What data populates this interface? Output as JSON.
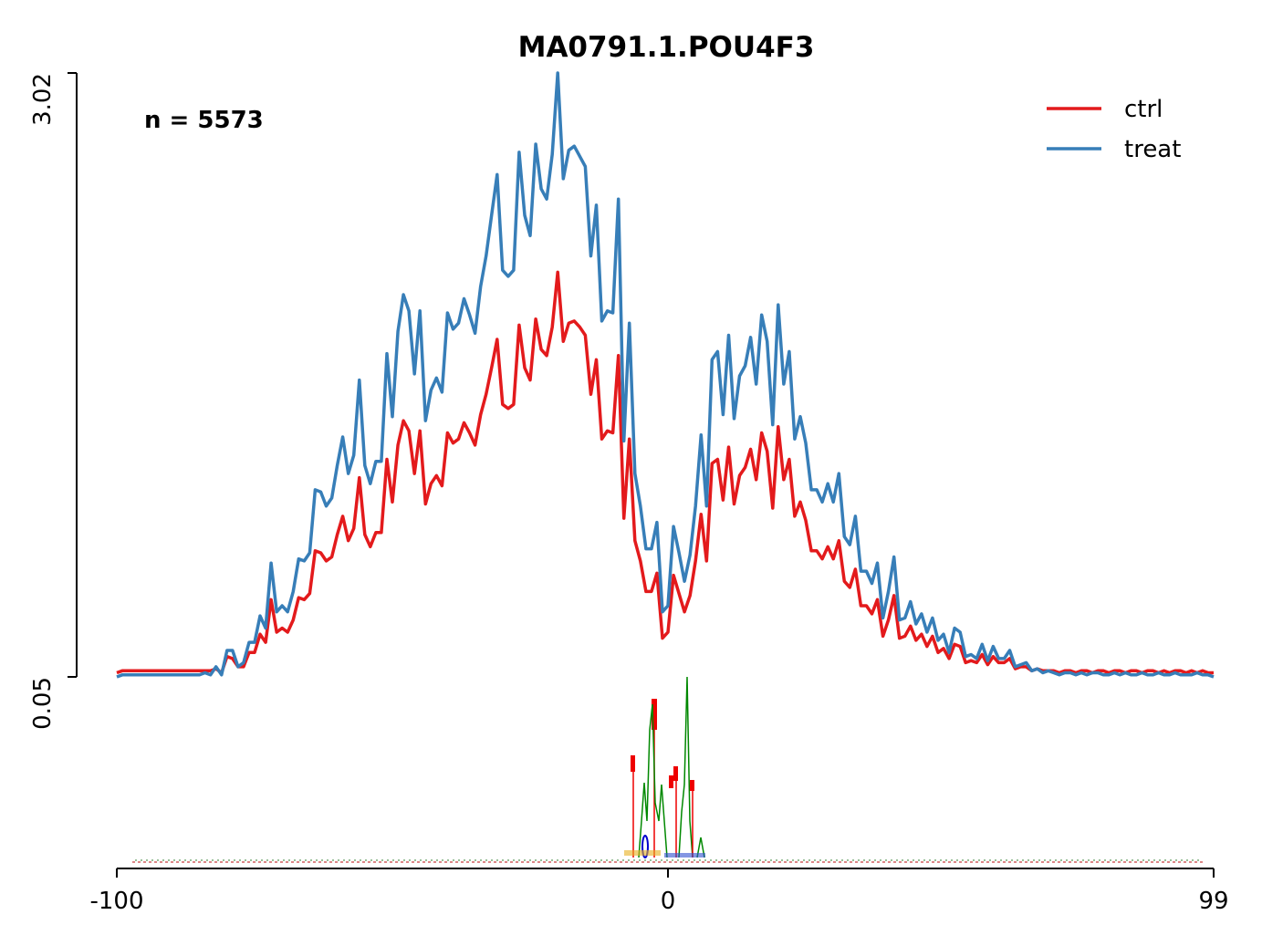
{
  "chart_data": {
    "type": "line",
    "title": "MA0791.1.POU4F3",
    "annotation": "n = 5573",
    "x": [
      -100,
      -99,
      -98,
      -97,
      -96,
      -95,
      -94,
      -93,
      -92,
      -91,
      -90,
      -89,
      -88,
      -87,
      -86,
      -85,
      -84,
      -83,
      -82,
      -81,
      -80,
      -79,
      -78,
      -77,
      -76,
      -75,
      -74,
      -73,
      -72,
      -71,
      -70,
      -69,
      -68,
      -67,
      -66,
      -65,
      -64,
      -63,
      -62,
      -61,
      -60,
      -59,
      -58,
      -57,
      -56,
      -55,
      -54,
      -53,
      -52,
      -51,
      -50,
      -49,
      -48,
      -47,
      -46,
      -45,
      -44,
      -43,
      -42,
      -41,
      -40,
      -39,
      -38,
      -37,
      -36,
      -35,
      -34,
      -33,
      -32,
      -31,
      -30,
      -29,
      -28,
      -27,
      -26,
      -25,
      -24,
      -23,
      -22,
      -21,
      -20,
      -19,
      -18,
      -17,
      -16,
      -15,
      -14,
      -13,
      -12,
      -11,
      -10,
      -9,
      -8,
      -7,
      -6,
      -5,
      -4,
      -3,
      -2,
      -1,
      0,
      1,
      2,
      3,
      4,
      5,
      6,
      7,
      8,
      9,
      10,
      11,
      12,
      13,
      14,
      15,
      16,
      17,
      18,
      19,
      20,
      21,
      22,
      23,
      24,
      25,
      26,
      27,
      28,
      29,
      30,
      31,
      32,
      33,
      34,
      35,
      36,
      37,
      38,
      39,
      40,
      41,
      42,
      43,
      44,
      45,
      46,
      47,
      48,
      49,
      50,
      51,
      52,
      53,
      54,
      55,
      56,
      57,
      58,
      59,
      60,
      61,
      62,
      63,
      64,
      65,
      66,
      67,
      68,
      69,
      70,
      71,
      72,
      73,
      74,
      75,
      76,
      77,
      78,
      79,
      80,
      81,
      82,
      83,
      84,
      85,
      86,
      87,
      88,
      89,
      90,
      91,
      92,
      93,
      94,
      95,
      96,
      97,
      98,
      99
    ],
    "series": [
      {
        "name": "ctrl",
        "color": "#e31a1c",
        "values": [
          0.07,
          0.08,
          0.08,
          0.08,
          0.08,
          0.08,
          0.08,
          0.08,
          0.08,
          0.08,
          0.08,
          0.08,
          0.08,
          0.08,
          0.08,
          0.08,
          0.08,
          0.08,
          0.09,
          0.07,
          0.15,
          0.14,
          0.1,
          0.1,
          0.17,
          0.17,
          0.26,
          0.22,
          0.43,
          0.27,
          0.29,
          0.27,
          0.33,
          0.44,
          0.43,
          0.46,
          0.67,
          0.66,
          0.62,
          0.64,
          0.75,
          0.84,
          0.72,
          0.78,
          1.03,
          0.75,
          0.69,
          0.76,
          0.76,
          1.12,
          0.91,
          1.19,
          1.31,
          1.26,
          1.05,
          1.26,
          0.9,
          1.0,
          1.04,
          0.99,
          1.25,
          1.2,
          1.22,
          1.3,
          1.25,
          1.19,
          1.34,
          1.44,
          1.57,
          1.71,
          1.39,
          1.37,
          1.39,
          1.78,
          1.57,
          1.51,
          1.81,
          1.66,
          1.63,
          1.77,
          2.04,
          1.7,
          1.79,
          1.8,
          1.77,
          1.73,
          1.44,
          1.61,
          1.22,
          1.26,
          1.25,
          1.63,
          0.83,
          1.22,
          0.72,
          0.62,
          0.47,
          0.47,
          0.56,
          0.24,
          0.27,
          0.55,
          0.46,
          0.37,
          0.45,
          0.62,
          0.85,
          0.62,
          1.1,
          1.12,
          0.92,
          1.18,
          0.9,
          1.04,
          1.08,
          1.17,
          1.02,
          1.25,
          1.16,
          0.88,
          1.28,
          1.02,
          1.12,
          0.84,
          0.91,
          0.82,
          0.67,
          0.67,
          0.63,
          0.69,
          0.63,
          0.72,
          0.52,
          0.49,
          0.58,
          0.4,
          0.4,
          0.36,
          0.43,
          0.25,
          0.33,
          0.45,
          0.24,
          0.25,
          0.3,
          0.23,
          0.26,
          0.2,
          0.25,
          0.17,
          0.19,
          0.14,
          0.21,
          0.2,
          0.12,
          0.13,
          0.12,
          0.16,
          0.11,
          0.15,
          0.12,
          0.12,
          0.14,
          0.09,
          0.1,
          0.1,
          0.08,
          0.09,
          0.08,
          0.08,
          0.08,
          0.07,
          0.08,
          0.08,
          0.07,
          0.08,
          0.08,
          0.07,
          0.08,
          0.08,
          0.07,
          0.08,
          0.08,
          0.07,
          0.08,
          0.08,
          0.07,
          0.08,
          0.08,
          0.07,
          0.08,
          0.07,
          0.08,
          0.08,
          0.07,
          0.08,
          0.07,
          0.08,
          0.07,
          0.07
        ]
      },
      {
        "name": "treat",
        "color": "#377eb8",
        "values": [
          0.05,
          0.06,
          0.06,
          0.06,
          0.06,
          0.06,
          0.06,
          0.06,
          0.06,
          0.06,
          0.06,
          0.06,
          0.06,
          0.06,
          0.06,
          0.06,
          0.07,
          0.06,
          0.1,
          0.06,
          0.18,
          0.18,
          0.1,
          0.12,
          0.22,
          0.22,
          0.35,
          0.29,
          0.61,
          0.37,
          0.4,
          0.37,
          0.47,
          0.63,
          0.62,
          0.66,
          0.97,
          0.96,
          0.89,
          0.93,
          1.09,
          1.23,
          1.05,
          1.14,
          1.51,
          1.09,
          1.0,
          1.11,
          1.11,
          1.64,
          1.33,
          1.75,
          1.93,
          1.85,
          1.54,
          1.85,
          1.31,
          1.46,
          1.52,
          1.45,
          1.84,
          1.76,
          1.79,
          1.91,
          1.83,
          1.74,
          1.97,
          2.12,
          2.32,
          2.52,
          2.05,
          2.02,
          2.05,
          2.63,
          2.32,
          2.22,
          2.67,
          2.45,
          2.4,
          2.62,
          3.02,
          2.5,
          2.64,
          2.66,
          2.61,
          2.56,
          2.12,
          2.37,
          1.8,
          1.85,
          1.84,
          2.4,
          1.21,
          1.79,
          1.05,
          0.89,
          0.68,
          0.68,
          0.81,
          0.37,
          0.4,
          0.79,
          0.66,
          0.52,
          0.65,
          0.89,
          1.24,
          0.89,
          1.61,
          1.65,
          1.34,
          1.73,
          1.32,
          1.53,
          1.58,
          1.72,
          1.49,
          1.83,
          1.7,
          1.29,
          1.88,
          1.49,
          1.65,
          1.22,
          1.33,
          1.2,
          0.97,
          0.97,
          0.91,
          1.0,
          0.91,
          1.05,
          0.74,
          0.7,
          0.84,
          0.57,
          0.57,
          0.51,
          0.61,
          0.34,
          0.47,
          0.64,
          0.33,
          0.34,
          0.42,
          0.31,
          0.36,
          0.27,
          0.34,
          0.23,
          0.26,
          0.17,
          0.29,
          0.27,
          0.15,
          0.16,
          0.14,
          0.21,
          0.13,
          0.2,
          0.14,
          0.14,
          0.18,
          0.1,
          0.11,
          0.12,
          0.08,
          0.09,
          0.07,
          0.08,
          0.07,
          0.06,
          0.07,
          0.07,
          0.06,
          0.07,
          0.06,
          0.07,
          0.07,
          0.06,
          0.06,
          0.07,
          0.06,
          0.07,
          0.06,
          0.06,
          0.07,
          0.06,
          0.06,
          0.07,
          0.06,
          0.06,
          0.07,
          0.06,
          0.06,
          0.06,
          0.07,
          0.06,
          0.06,
          0.05
        ]
      }
    ],
    "xlim": [
      -100,
      99
    ],
    "xticks": [
      -100,
      0,
      99
    ],
    "ylim": [
      0.05,
      3.02
    ],
    "yticks": [
      0.05,
      3.02
    ],
    "legend": "upper right"
  }
}
